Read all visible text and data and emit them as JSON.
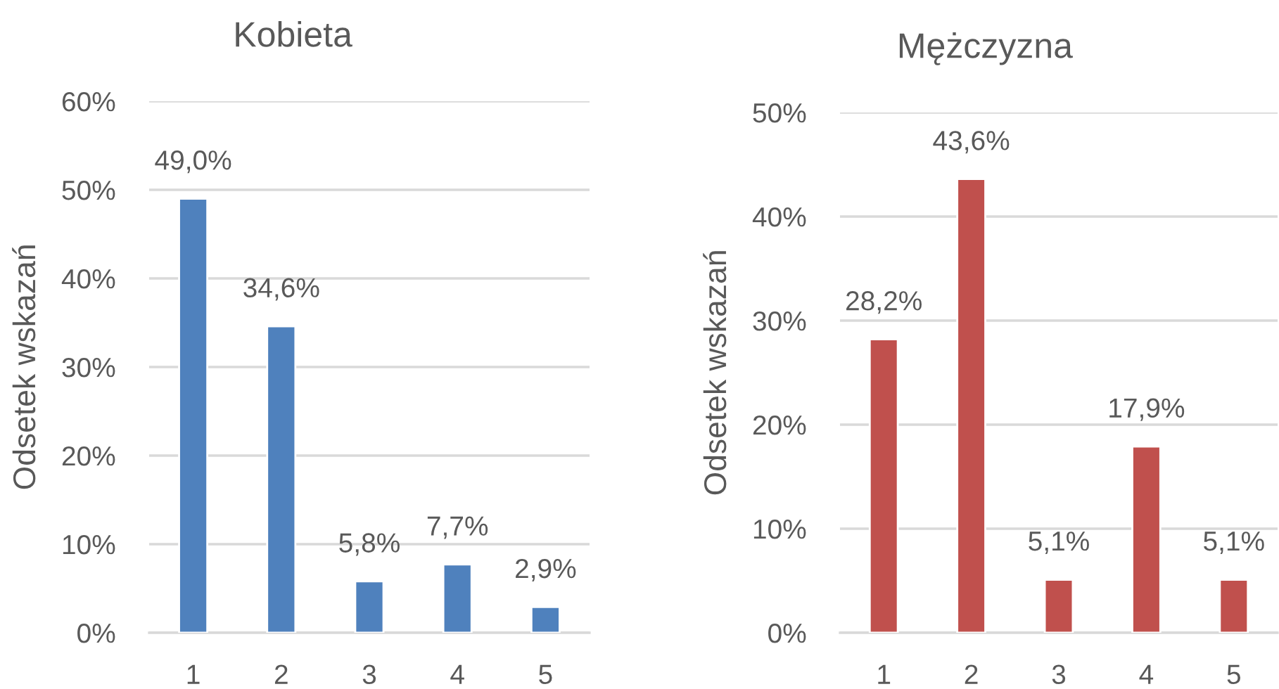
{
  "chart_data": [
    {
      "type": "bar",
      "title": "Kobieta",
      "ylabel": "Odsetek wskazań",
      "categories": [
        "1",
        "2",
        "3",
        "4",
        "5"
      ],
      "values": [
        49.0,
        34.6,
        5.8,
        7.7,
        2.9
      ],
      "value_labels": [
        "49,0%",
        "34,6%",
        "5,8%",
        "7,7%",
        "2,9%"
      ],
      "color": "#4f81bd",
      "ylim": [
        0,
        60
      ],
      "yticks": [
        {
          "value": 0,
          "label": "0%"
        },
        {
          "value": 10,
          "label": "10%"
        },
        {
          "value": 20,
          "label": "20%"
        },
        {
          "value": 30,
          "label": "30%"
        },
        {
          "value": 40,
          "label": "40%"
        },
        {
          "value": 50,
          "label": "50%"
        },
        {
          "value": 60,
          "label": "60%"
        }
      ],
      "grid": "y"
    },
    {
      "type": "bar",
      "title": "Mężczyzna",
      "ylabel": "Odsetek wskazań",
      "categories": [
        "1",
        "2",
        "3",
        "4",
        "5"
      ],
      "values": [
        28.2,
        43.6,
        5.1,
        17.9,
        5.1
      ],
      "value_labels": [
        "28,2%",
        "43,6%",
        "5,1%",
        "17,9%",
        "5,1%"
      ],
      "color": "#c0504d",
      "ylim": [
        0,
        50
      ],
      "yticks": [
        {
          "value": 0,
          "label": "0%"
        },
        {
          "value": 10,
          "label": "10%"
        },
        {
          "value": 20,
          "label": "20%"
        },
        {
          "value": 30,
          "label": "30%"
        },
        {
          "value": 40,
          "label": "40%"
        },
        {
          "value": 50,
          "label": "50%"
        }
      ],
      "grid": "y"
    }
  ]
}
